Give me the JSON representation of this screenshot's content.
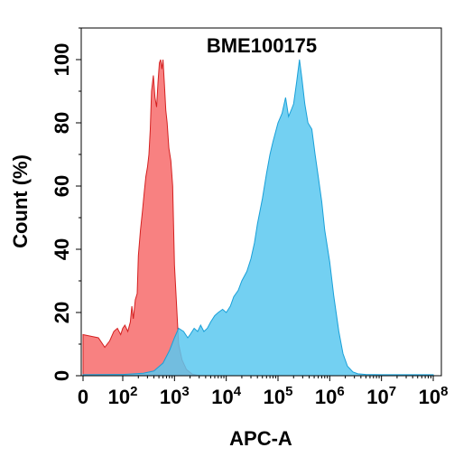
{
  "chart_data": {
    "type": "area",
    "title": "BME100175",
    "xlabel": "APC-A",
    "ylabel": "Count (%)",
    "x_scale": "biexponential-log",
    "xlim": [
      0,
      100000000
    ],
    "ylim": [
      0,
      110
    ],
    "y_ticks": [
      0,
      20,
      40,
      60,
      80,
      100
    ],
    "x_ticks": [
      {
        "value": 0,
        "base": "0",
        "exp": ""
      },
      {
        "value": 100,
        "base": "10",
        "exp": "2"
      },
      {
        "value": 1000,
        "base": "10",
        "exp": "3"
      },
      {
        "value": 10000,
        "base": "10",
        "exp": "4"
      },
      {
        "value": 100000,
        "base": "10",
        "exp": "5"
      },
      {
        "value": 1000000,
        "base": "10",
        "exp": "6"
      },
      {
        "value": 10000000,
        "base": "10",
        "exp": "7"
      },
      {
        "value": 100000000,
        "base": "10",
        "exp": "8"
      }
    ],
    "grid": false,
    "legend": "none",
    "series": [
      {
        "color": "#f76b6b",
        "stroke": "#d42020",
        "opacity": 0.85,
        "points": [
          [
            0,
            13
          ],
          [
            15,
            12
          ],
          [
            30,
            9
          ],
          [
            45,
            11
          ],
          [
            60,
            14
          ],
          [
            75,
            15
          ],
          [
            90,
            13
          ],
          [
            100,
            15
          ],
          [
            110,
            16
          ],
          [
            125,
            14
          ],
          [
            140,
            17
          ],
          [
            150,
            22
          ],
          [
            160,
            18
          ],
          [
            175,
            24
          ],
          [
            190,
            26
          ],
          [
            200,
            38
          ],
          [
            220,
            46
          ],
          [
            240,
            52
          ],
          [
            260,
            58
          ],
          [
            280,
            63
          ],
          [
            300,
            66
          ],
          [
            320,
            70
          ],
          [
            340,
            78
          ],
          [
            360,
            90
          ],
          [
            390,
            95
          ],
          [
            420,
            88
          ],
          [
            450,
            85
          ],
          [
            480,
            93
          ],
          [
            510,
            99
          ],
          [
            540,
            100
          ],
          [
            570,
            97
          ],
          [
            600,
            100
          ],
          [
            640,
            92
          ],
          [
            680,
            84
          ],
          [
            720,
            80
          ],
          [
            780,
            72
          ],
          [
            850,
            68
          ],
          [
            920,
            60
          ],
          [
            1000,
            35
          ],
          [
            1100,
            22
          ],
          [
            1200,
            10
          ],
          [
            1400,
            5
          ],
          [
            1700,
            2
          ],
          [
            2200,
            0.5
          ],
          [
            3000,
            0
          ]
        ]
      },
      {
        "color": "#5ac8f0",
        "stroke": "#1aa0d8",
        "opacity": 0.85,
        "points": [
          [
            0,
            0.3
          ],
          [
            100,
            0.4
          ],
          [
            250,
            0.8
          ],
          [
            400,
            1.5
          ],
          [
            600,
            4
          ],
          [
            800,
            8
          ],
          [
            1000,
            12
          ],
          [
            1200,
            15
          ],
          [
            1500,
            14
          ],
          [
            1800,
            12
          ],
          [
            2000,
            13
          ],
          [
            2400,
            15
          ],
          [
            2800,
            14
          ],
          [
            3200,
            16
          ],
          [
            3700,
            14
          ],
          [
            4300,
            15
          ],
          [
            5000,
            17
          ],
          [
            6000,
            19
          ],
          [
            7000,
            20
          ],
          [
            8500,
            21
          ],
          [
            10000,
            20
          ],
          [
            12000,
            22
          ],
          [
            14000,
            25
          ],
          [
            17000,
            27
          ],
          [
            20000,
            30
          ],
          [
            25000,
            33
          ],
          [
            30000,
            37
          ],
          [
            35000,
            42
          ],
          [
            40000,
            48
          ],
          [
            50000,
            56
          ],
          [
            60000,
            64
          ],
          [
            70000,
            70
          ],
          [
            80000,
            74
          ],
          [
            100000,
            80
          ],
          [
            120000,
            83
          ],
          [
            140000,
            88
          ],
          [
            160000,
            82
          ],
          [
            180000,
            84
          ],
          [
            200000,
            86
          ],
          [
            230000,
            93
          ],
          [
            260000,
            100
          ],
          [
            290000,
            94
          ],
          [
            330000,
            86
          ],
          [
            380000,
            80
          ],
          [
            450000,
            78
          ],
          [
            520000,
            70
          ],
          [
            600000,
            63
          ],
          [
            700000,
            55
          ],
          [
            800000,
            46
          ],
          [
            1000000,
            36
          ],
          [
            1200000,
            25
          ],
          [
            1500000,
            14
          ],
          [
            1800000,
            7
          ],
          [
            2200000,
            3
          ],
          [
            2800000,
            1.2
          ],
          [
            3500000,
            0.6
          ],
          [
            5000000,
            0.4
          ],
          [
            10000000,
            0.3
          ],
          [
            30000000,
            0.3
          ],
          [
            100000000,
            0.3
          ]
        ]
      }
    ]
  }
}
